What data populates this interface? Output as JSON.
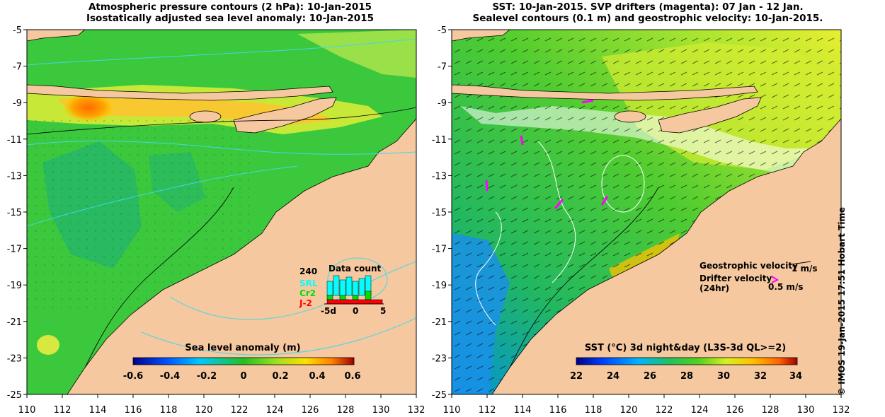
{
  "left_panel": {
    "title_line1": "Atmospheric pressure contours (2 hPa): 10-Jan-2015",
    "title_line2": "Isostatically adjusted sea level anomaly: 10-Jan-2015",
    "colorbar": {
      "label": "Sea level anomaly (m)",
      "ticks": [
        "-0.6",
        "-0.4",
        "-0.2",
        "0",
        "0.2",
        "0.4",
        "0.6"
      ],
      "range": [
        -0.6,
        0.6
      ]
    },
    "data_count": {
      "title": "Data count",
      "max_label": "240",
      "series": [
        {
          "name": "SRL",
          "color": "#00ffff"
        },
        {
          "name": "Cr2",
          "color": "#00dd00"
        },
        {
          "name": "J-2",
          "color": "#ff0000"
        }
      ],
      "axis_labels": [
        "-5d",
        "0",
        "5"
      ]
    }
  },
  "right_panel": {
    "title_line1": "SST: 10-Jan-2015. SVP drifters (magenta): 07 Jan - 12 Jan.",
    "title_line2": "Sealevel contours (0.1 m) and geostrophic velocity: 10-Jan-2015.",
    "colorbar": {
      "label": "SST (°C) 3d night&day (L3S-3d QL>=2)",
      "ticks": [
        "22",
        "24",
        "26",
        "28",
        "30",
        "32",
        "34"
      ],
      "range": [
        22,
        34
      ]
    },
    "legend": {
      "geostrophic_label": "Geostrophic velocity",
      "geostrophic_scale": "1 m/s",
      "drifter_label_line1": "Drifter velocity",
      "drifter_label_line2": "(24hr)",
      "drifter_scale": "0.5 m/s"
    }
  },
  "axes": {
    "x_ticks": [
      "110",
      "112",
      "114",
      "116",
      "118",
      "120",
      "122",
      "124",
      "126",
      "128",
      "130",
      "132"
    ],
    "y_ticks": [
      "-5",
      "-7",
      "-9",
      "-11",
      "-13",
      "-15",
      "-17",
      "-19",
      "-21",
      "-23",
      "-25"
    ],
    "lon_range": [
      110,
      132
    ],
    "lat_range": [
      -25,
      -5
    ]
  },
  "credit": "© IMOS 19-Jan-2015 17:51 Hobart Time",
  "colors": {
    "land": "#f5c8a0",
    "ocean_base": "#33cc33",
    "contour": "#40d8e8"
  }
}
